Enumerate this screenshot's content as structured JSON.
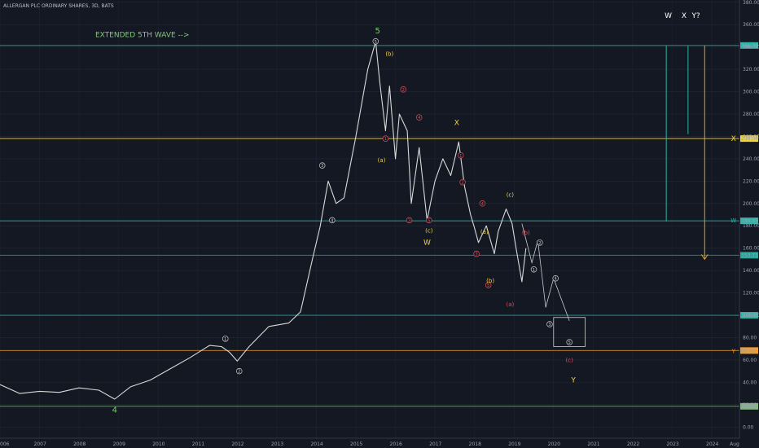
{
  "chart_data": {
    "type": "line",
    "title": "ALLERGAN PLC ORDINARY SHARES, 3D, BATS",
    "xlabel": "",
    "ylabel": "",
    "x_ticks": [
      "006",
      "2007",
      "2008",
      "2009",
      "2010",
      "2011",
      "2012",
      "2013",
      "2014",
      "2015",
      "2016",
      "2017",
      "2018",
      "2019",
      "2020",
      "2021",
      "2022",
      "2023",
      "2024",
      "Aug"
    ],
    "y_ticks": [
      "0.00",
      "20.00",
      "40.00",
      "60.00",
      "80.00",
      "100.00",
      "120.00",
      "140.00",
      "160.00",
      "180.00",
      "200.00",
      "220.00",
      "240.00",
      "260.00",
      "280.00",
      "300.00",
      "320.00",
      "340.00",
      "360.00",
      "380.00"
    ],
    "ylim": [
      -10,
      382
    ],
    "xlim": [
      2006.0,
      2024.7
    ],
    "grid": true,
    "price_series": {
      "name": "",
      "color": "#d9d9d9",
      "x": [
        2006.0,
        2006.5,
        2007.0,
        2007.5,
        2008.0,
        2008.5,
        2008.9,
        2009.3,
        2009.8,
        2010.3,
        2010.8,
        2011.3,
        2011.6,
        2011.8,
        2012.0,
        2012.3,
        2012.8,
        2013.3,
        2013.6,
        2013.9,
        2014.1,
        2014.3,
        2014.5,
        2014.7,
        2015.0,
        2015.3,
        2015.5,
        2015.6,
        2015.75,
        2015.85,
        2016.0,
        2016.1,
        2016.3,
        2016.4,
        2016.6,
        2016.8,
        2017.0,
        2017.2,
        2017.4,
        2017.6,
        2017.75,
        2017.9,
        2018.0,
        2018.1,
        2018.3,
        2018.5,
        2018.6,
        2018.8,
        2018.95,
        2019.05,
        2019.2,
        2019.3
      ],
      "y": [
        38,
        30,
        32,
        31,
        35,
        33,
        25,
        36,
        42,
        52,
        62,
        73,
        72,
        67,
        59,
        72,
        90,
        93,
        103,
        150,
        180,
        220,
        200,
        205,
        260,
        320,
        345,
        310,
        265,
        305,
        240,
        280,
        265,
        200,
        250,
        185,
        220,
        240,
        225,
        255,
        215,
        190,
        178,
        165,
        180,
        155,
        175,
        195,
        182,
        160,
        130,
        160
      ]
    },
    "projection": {
      "color": "#c9c9c9",
      "x": [
        2019.2,
        2019.45,
        2019.6,
        2019.8,
        2020.0,
        2020.4
      ],
      "y": [
        182,
        147,
        167,
        107,
        133,
        95
      ]
    },
    "horizontal_levels": [
      {
        "price": 341.33,
        "label": "341.33",
        "color": "#2bb5a8"
      },
      {
        "price": 258.04,
        "label": "258.04",
        "color": "#f2d33b"
      },
      {
        "price": 184.45,
        "label": "184.45",
        "color": "#2bb5a8"
      },
      {
        "price": 153.71,
        "label": "153.71",
        "color": "#26a69a"
      },
      {
        "price": 100.0,
        "label": "100.00",
        "color": "#2bb5a8"
      },
      {
        "price": 68.43,
        "label": "68.43",
        "color": "#f29d2b"
      },
      {
        "price": 18.55,
        "label": "18.55",
        "color": "#7fb87a"
      }
    ],
    "box": {
      "x": [
        2020.0,
        2020.8
      ],
      "y": [
        72,
        98
      ],
      "color": "#d0d0d0"
    },
    "measure_lines": [
      {
        "x": 2022.85,
        "y1": 341,
        "y2": 184,
        "color": "#2bb5a8",
        "arrow": false
      },
      {
        "x": 2023.4,
        "y1": 341,
        "y2": 262,
        "color": "#2bb5a8",
        "arrow": false
      },
      {
        "x": 2023.82,
        "y1": 341,
        "y2": 150,
        "color": "#e0a21a",
        "arrow": true
      }
    ],
    "annotations": [
      {
        "text": "EXTENDED 5TH WAVE -->",
        "x": 2009.6,
        "y": 349,
        "color": "#7fcc6e",
        "size": 9
      },
      {
        "text": "5",
        "x": 2015.55,
        "y": 352,
        "color": "#7fcc6e",
        "size": 10
      },
      {
        "text": "4",
        "x": 2008.9,
        "y": 13,
        "color": "#7fcc6e",
        "size": 10
      },
      {
        "text": "W",
        "x": 2022.9,
        "y": 366,
        "color": "#ffffff",
        "size": 9
      },
      {
        "text": "X",
        "x": 2023.3,
        "y": 366,
        "color": "#ffffff",
        "size": 9
      },
      {
        "text": "Y?",
        "x": 2023.6,
        "y": 366,
        "color": "#ffffff",
        "size": 9
      },
      {
        "text": "(b)",
        "x": 2015.85,
        "y": 332,
        "color": "#f2d33b",
        "size": 7
      },
      {
        "text": "(a)",
        "x": 2015.65,
        "y": 237,
        "color": "#f2d33b",
        "size": 7
      },
      {
        "text": "X",
        "x": 2017.55,
        "y": 270,
        "color": "#f2d33b",
        "size": 9
      },
      {
        "text": "(c)",
        "x": 2016.85,
        "y": 174,
        "color": "#f2d33b",
        "size": 7
      },
      {
        "text": "W",
        "x": 2016.8,
        "y": 163,
        "color": "#f2d33b",
        "size": 9
      },
      {
        "text": "(a)",
        "x": 2018.25,
        "y": 173,
        "color": "#f2d33b",
        "size": 7
      },
      {
        "text": "(b)",
        "x": 2018.4,
        "y": 129,
        "color": "#f2d33b",
        "size": 7
      },
      {
        "text": "(c)",
        "x": 2018.9,
        "y": 206,
        "color": "#f2d33b",
        "size": 7
      },
      {
        "text": "(b)",
        "x": 2019.3,
        "y": 172,
        "color": "#e0505a",
        "size": 7
      },
      {
        "text": "(a)",
        "x": 2018.9,
        "y": 108,
        "color": "#e0505a",
        "size": 7
      },
      {
        "text": "(c)",
        "x": 2020.4,
        "y": 58,
        "color": "#e0505a",
        "size": 7
      },
      {
        "text": "Y",
        "x": 2020.5,
        "y": 40,
        "color": "#f2d33b",
        "size": 9
      },
      {
        "text": "X",
        "x": 2024.55,
        "y": 256,
        "color": "#f2d33b",
        "size": 9
      },
      {
        "text": "W",
        "x": 2024.55,
        "y": 183,
        "color": "#2bb5a8",
        "size": 7
      },
      {
        "text": "Y",
        "x": 2024.55,
        "y": 66,
        "color": "#f29d2b",
        "size": 7
      }
    ],
    "wave_markers": [
      {
        "text": "1",
        "x": 2011.7,
        "y": 79,
        "color": "#cfcfcf"
      },
      {
        "text": "2",
        "x": 2012.05,
        "y": 50,
        "color": "#cfcfcf"
      },
      {
        "text": "3",
        "x": 2014.15,
        "y": 234,
        "color": "#cfcfcf"
      },
      {
        "text": "4",
        "x": 2014.4,
        "y": 185,
        "color": "#cfcfcf"
      },
      {
        "text": "5",
        "x": 2015.5,
        "y": 345,
        "color": "#cfcfcf"
      },
      {
        "text": "1",
        "x": 2015.75,
        "y": 258,
        "color": "#e0505a"
      },
      {
        "text": "2",
        "x": 2016.2,
        "y": 302,
        "color": "#e0505a"
      },
      {
        "text": "3",
        "x": 2016.35,
        "y": 185,
        "color": "#e0505a"
      },
      {
        "text": "4",
        "x": 2016.6,
        "y": 277,
        "color": "#e0505a"
      },
      {
        "text": "5",
        "x": 2016.85,
        "y": 185,
        "color": "#e0505a"
      },
      {
        "text": "1",
        "x": 2017.65,
        "y": 243,
        "color": "#e0505a"
      },
      {
        "text": "2",
        "x": 2017.7,
        "y": 219,
        "color": "#e0505a"
      },
      {
        "text": "3",
        "x": 2018.05,
        "y": 155,
        "color": "#e0505a"
      },
      {
        "text": "4",
        "x": 2018.2,
        "y": 200,
        "color": "#e0505a"
      },
      {
        "text": "5",
        "x": 2018.35,
        "y": 127,
        "color": "#e0505a"
      },
      {
        "text": "1",
        "x": 2019.5,
        "y": 141,
        "color": "#cfcfcf"
      },
      {
        "text": "2",
        "x": 2019.65,
        "y": 165,
        "color": "#cfcfcf"
      },
      {
        "text": "3",
        "x": 2019.9,
        "y": 92,
        "color": "#cfcfcf"
      },
      {
        "text": "4",
        "x": 2020.05,
        "y": 133,
        "color": "#cfcfcf"
      },
      {
        "text": "5",
        "x": 2020.4,
        "y": 76,
        "color": "#cfcfcf"
      }
    ]
  }
}
